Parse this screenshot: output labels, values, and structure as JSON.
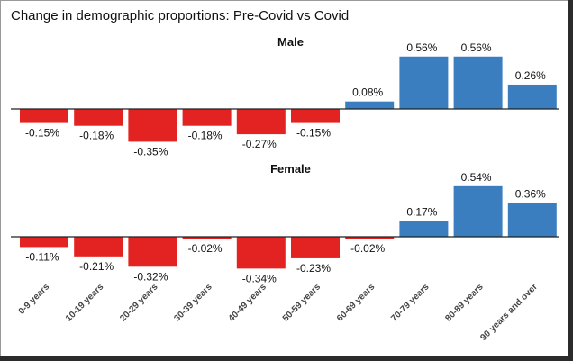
{
  "title": "Change in demographic proportions: Pre-Covid vs Covid",
  "colors": {
    "positive": "#3a7ebf",
    "negative": "#e32222",
    "baseline": "#222222"
  },
  "chart_data": [
    {
      "type": "bar",
      "title": "Male",
      "categories": [
        "0-9 years",
        "10-19 years",
        "20-29 years",
        "30-39 years",
        "40-49 years",
        "50-59 years",
        "60-69 years",
        "70-79 years",
        "80-89 years",
        "90 years and over"
      ],
      "values": [
        -0.15,
        -0.18,
        -0.35,
        -0.18,
        -0.27,
        -0.15,
        0.08,
        0.56,
        0.56,
        0.26
      ],
      "labels": [
        "-0.15%",
        "-0.18%",
        "-0.35%",
        "-0.18%",
        "-0.27%",
        "-0.15%",
        "0.08%",
        "0.56%",
        "0.56%",
        "0.26%"
      ],
      "unit": "%",
      "grid": false
    },
    {
      "type": "bar",
      "title": "Female",
      "categories": [
        "0-9 years",
        "10-19 years",
        "20-29 years",
        "30-39 years",
        "40-49 years",
        "50-59 years",
        "60-69 years",
        "70-79 years",
        "80-89 years",
        "90 years and over"
      ],
      "values": [
        -0.11,
        -0.21,
        -0.32,
        -0.02,
        -0.34,
        -0.23,
        -0.02,
        0.17,
        0.54,
        0.36
      ],
      "labels": [
        "-0.11%",
        "-0.21%",
        "-0.32%",
        "-0.02%",
        "-0.34%",
        "-0.23%",
        "-0.02%",
        "0.17%",
        "0.54%",
        "0.36%"
      ],
      "unit": "%",
      "grid": false
    }
  ]
}
